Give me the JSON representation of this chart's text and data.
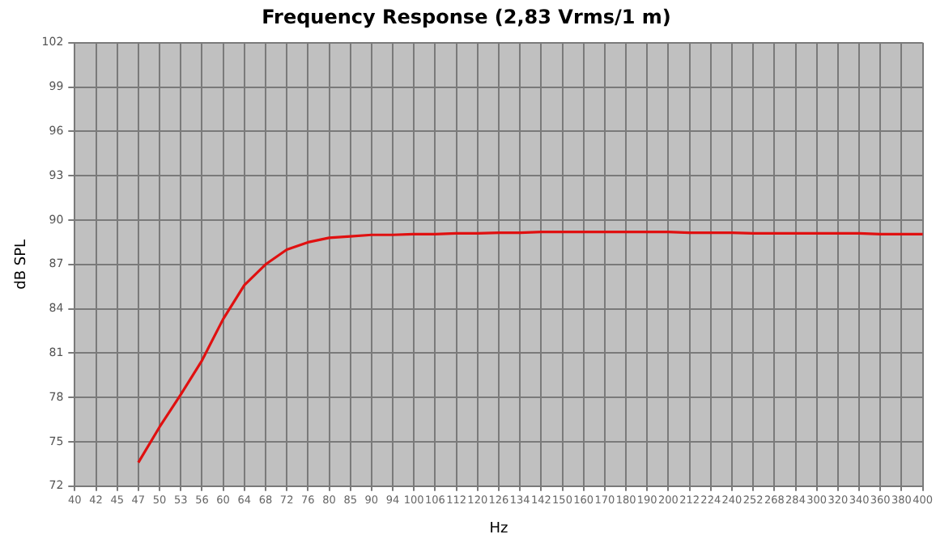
{
  "chart_data": {
    "type": "line",
    "title": "Frequency Response (2,83 Vrms/1 m)",
    "xlabel": "Hz",
    "ylabel": "dB SPL",
    "categories": [
      "40",
      "42",
      "45",
      "47",
      "50",
      "53",
      "56",
      "60",
      "64",
      "68",
      "72",
      "76",
      "80",
      "85",
      "90",
      "94",
      "100",
      "106",
      "112",
      "120",
      "126",
      "134",
      "142",
      "150",
      "160",
      "170",
      "180",
      "190",
      "200",
      "212",
      "224",
      "240",
      "252",
      "268",
      "284",
      "300",
      "320",
      "340",
      "360",
      "380",
      "400"
    ],
    "series": [
      {
        "color": "#e01010",
        "values": [
          null,
          null,
          null,
          73.6,
          76.0,
          78.2,
          80.5,
          83.3,
          85.6,
          87.0,
          88.0,
          88.5,
          88.8,
          88.9,
          89.0,
          89.0,
          89.05,
          89.05,
          89.1,
          89.1,
          89.15,
          89.15,
          89.2,
          89.2,
          89.2,
          89.2,
          89.2,
          89.2,
          89.2,
          89.15,
          89.15,
          89.15,
          89.1,
          89.1,
          89.1,
          89.1,
          89.1,
          89.1,
          89.05,
          89.05,
          89.05
        ]
      }
    ],
    "ylim": [
      72,
      102
    ],
    "yticks": [
      72,
      75,
      78,
      81,
      84,
      87,
      90,
      93,
      96,
      99,
      102
    ],
    "grid": true,
    "legend": false,
    "marker": "none",
    "line_style": "solid"
  }
}
